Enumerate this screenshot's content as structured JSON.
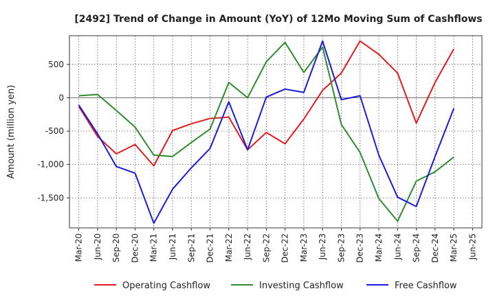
{
  "chart_data": {
    "type": "line",
    "title": "[2492]  Trend of Change in Amount (YoY) of 12Mo Moving Sum of Cashflows",
    "xlabel": "",
    "ylabel": "Amount (million yen)",
    "ylim": [
      -1950,
      930
    ],
    "yticks": [
      500,
      0,
      -500,
      -1000,
      -1500
    ],
    "ytick_labels": [
      "500",
      "0",
      "-500",
      "-1,000",
      "-1,500"
    ],
    "categories": [
      "Mar-20",
      "Jun-20",
      "Sep-20",
      "Dec-20",
      "Mar-21",
      "Jun-21",
      "Sep-21",
      "Dec-21",
      "Mar-22",
      "Jun-22",
      "Sep-22",
      "Dec-22",
      "Mar-23",
      "Jun-23",
      "Sep-23",
      "Dec-23",
      "Mar-24",
      "Jun-24",
      "Sep-24",
      "Dec-24",
      "Mar-25",
      "Jun-25"
    ],
    "grid": true,
    "legend_position": "bottom",
    "series": [
      {
        "name": "Operating Cashflow",
        "color": "#e41a1c",
        "values": [
          -130,
          -580,
          -840,
          -700,
          -1020,
          -490,
          -390,
          -310,
          -290,
          -780,
          -520,
          -690,
          -320,
          110,
          370,
          850,
          650,
          370,
          -380,
          230,
          730,
          null
        ]
      },
      {
        "name": "Investing Cashflow",
        "color": "#2e8b2e",
        "values": [
          30,
          50,
          -190,
          -440,
          -860,
          -880,
          -670,
          -470,
          230,
          0,
          540,
          830,
          380,
          760,
          -400,
          -820,
          -1510,
          -1850,
          -1250,
          -1110,
          -890,
          null
        ]
      },
      {
        "name": "Free Cashflow",
        "color": "#1a1adb",
        "values": [
          -110,
          -540,
          -1030,
          -1130,
          -1880,
          -1370,
          -1050,
          -760,
          -60,
          -780,
          10,
          130,
          80,
          850,
          -30,
          30,
          -860,
          -1490,
          -1630,
          -880,
          -160,
          null
        ]
      }
    ]
  }
}
